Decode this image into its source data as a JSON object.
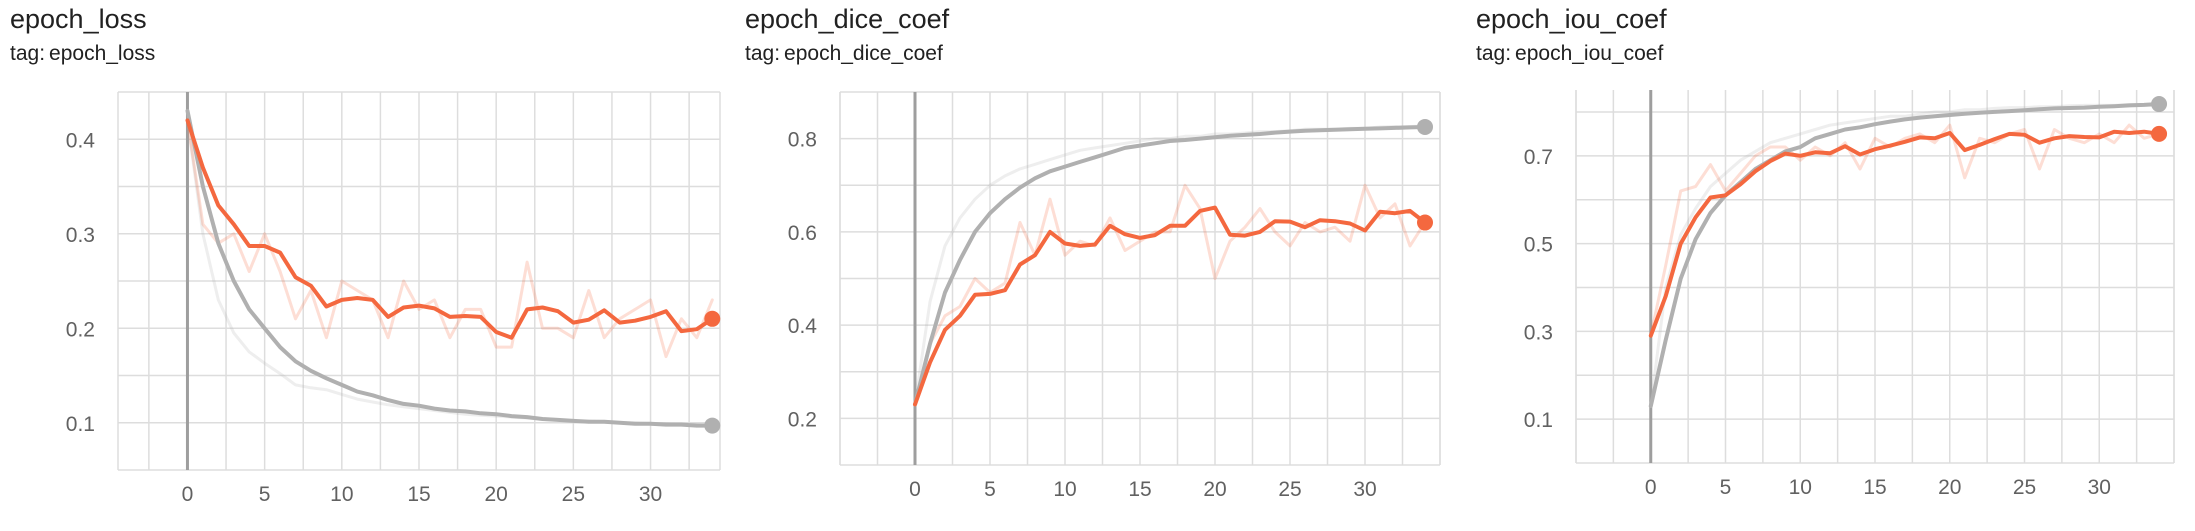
{
  "tag_label": "tag:",
  "colors": {
    "smoothed_train": "#f4683f",
    "raw_train": "#f4683f",
    "smoothed_val": "#b0b0b0",
    "raw_val": "#b0b0b0",
    "grid": "#dddddd",
    "zero_axis": "#9e9e9e"
  },
  "panels": [
    {
      "title": "epoch_loss",
      "tag": "epoch_loss"
    },
    {
      "title": "epoch_dice_coef",
      "tag": "epoch_dice_coef"
    },
    {
      "title": "epoch_iou_coef",
      "tag": "epoch_iou_coef"
    }
  ],
  "chart_data": [
    {
      "type": "line",
      "title": "epoch_loss",
      "xlabel": "",
      "ylabel": "",
      "xlim": [
        -4.5,
        34.5
      ],
      "ylim": [
        0.05,
        0.45
      ],
      "xticks": [
        0,
        5,
        10,
        15,
        20,
        25,
        30
      ],
      "yticks": [
        0.1,
        0.2,
        0.3,
        0.4
      ],
      "ytick_labels": [
        "0.1",
        "0.2",
        "0.3",
        "0.4"
      ],
      "grid": true,
      "series": [
        {
          "role": "raw_train",
          "x": [
            0,
            1,
            2,
            3,
            4,
            5,
            6,
            7,
            8,
            9,
            10,
            11,
            12,
            13,
            14,
            15,
            16,
            17,
            18,
            19,
            20,
            21,
            22,
            23,
            24,
            25,
            26,
            27,
            28,
            29,
            30,
            31,
            32,
            33,
            34
          ],
          "values": [
            0.42,
            0.31,
            0.29,
            0.3,
            0.26,
            0.3,
            0.26,
            0.21,
            0.24,
            0.19,
            0.25,
            0.24,
            0.23,
            0.19,
            0.25,
            0.22,
            0.23,
            0.19,
            0.22,
            0.22,
            0.18,
            0.18,
            0.27,
            0.2,
            0.2,
            0.19,
            0.24,
            0.19,
            0.21,
            0.22,
            0.23,
            0.17,
            0.21,
            0.19,
            0.23
          ]
        },
        {
          "role": "smoothed_train",
          "x": [
            0,
            1,
            2,
            3,
            4,
            5,
            6,
            7,
            8,
            9,
            10,
            11,
            12,
            13,
            14,
            15,
            16,
            17,
            18,
            19,
            20,
            21,
            22,
            23,
            24,
            25,
            26,
            27,
            28,
            29,
            30,
            31,
            32,
            33,
            34
          ],
          "values": [
            0.42,
            0.37,
            0.33,
            0.31,
            0.287,
            0.287,
            0.28,
            0.254,
            0.245,
            0.223,
            0.23,
            0.232,
            0.23,
            0.212,
            0.222,
            0.224,
            0.221,
            0.212,
            0.213,
            0.212,
            0.196,
            0.19,
            0.22,
            0.222,
            0.218,
            0.206,
            0.209,
            0.219,
            0.206,
            0.208,
            0.212,
            0.218,
            0.197,
            0.199,
            0.21
          ]
        },
        {
          "role": "raw_val",
          "x": [
            0,
            1,
            2,
            3,
            4,
            5,
            6,
            7,
            8,
            9,
            10,
            11,
            12,
            13,
            14,
            15,
            16,
            17,
            18,
            19,
            20,
            21,
            22,
            23,
            24,
            25,
            26,
            27,
            28,
            29,
            30,
            31,
            32,
            33,
            34
          ],
          "values": [
            0.42,
            0.3,
            0.23,
            0.195,
            0.175,
            0.163,
            0.152,
            0.14,
            0.137,
            0.135,
            0.13,
            0.125,
            0.122,
            0.119,
            0.117,
            0.115,
            0.113,
            0.111,
            0.109,
            0.108,
            0.107,
            0.106,
            0.105,
            0.104,
            0.103,
            0.102,
            0.102,
            0.101,
            0.1,
            0.1,
            0.099,
            0.099,
            0.098,
            0.098,
            0.097
          ]
        },
        {
          "role": "smoothed_val",
          "x": [
            0,
            1,
            2,
            3,
            4,
            5,
            6,
            7,
            8,
            9,
            10,
            11,
            12,
            13,
            14,
            15,
            16,
            17,
            18,
            19,
            20,
            21,
            22,
            23,
            24,
            25,
            26,
            27,
            28,
            29,
            30,
            31,
            32,
            33,
            34
          ],
          "values": [
            0.43,
            0.35,
            0.29,
            0.25,
            0.22,
            0.2,
            0.18,
            0.165,
            0.155,
            0.147,
            0.14,
            0.133,
            0.129,
            0.124,
            0.12,
            0.118,
            0.115,
            0.113,
            0.112,
            0.11,
            0.109,
            0.107,
            0.106,
            0.104,
            0.103,
            0.102,
            0.101,
            0.101,
            0.1,
            0.099,
            0.099,
            0.098,
            0.098,
            0.097,
            0.097
          ]
        }
      ],
      "end_markers": {
        "train": 0.21,
        "val": 0.097
      }
    },
    {
      "type": "line",
      "title": "epoch_dice_coef",
      "xlabel": "",
      "ylabel": "",
      "xlim": [
        -5,
        35
      ],
      "ylim": [
        0.1,
        0.9
      ],
      "xticks": [
        0,
        5,
        10,
        15,
        20,
        25,
        30
      ],
      "yticks": [
        0.2,
        0.4,
        0.6,
        0.8
      ],
      "ytick_labels": [
        "0.2",
        "0.4",
        "0.6",
        "0.8"
      ],
      "grid": true,
      "series": [
        {
          "role": "raw_train",
          "x": [
            0,
            1,
            2,
            3,
            4,
            5,
            6,
            7,
            8,
            9,
            10,
            11,
            12,
            13,
            14,
            15,
            16,
            17,
            18,
            19,
            20,
            21,
            22,
            23,
            24,
            25,
            26,
            27,
            28,
            29,
            30,
            31,
            32,
            33,
            34
          ],
          "values": [
            0.23,
            0.36,
            0.42,
            0.44,
            0.5,
            0.47,
            0.49,
            0.62,
            0.55,
            0.67,
            0.55,
            0.58,
            0.57,
            0.63,
            0.56,
            0.58,
            0.6,
            0.6,
            0.7,
            0.65,
            0.5,
            0.58,
            0.61,
            0.65,
            0.6,
            0.57,
            0.62,
            0.6,
            0.61,
            0.58,
            0.7,
            0.63,
            0.66,
            0.57,
            0.62
          ]
        },
        {
          "role": "smoothed_train",
          "x": [
            0,
            1,
            2,
            3,
            4,
            5,
            6,
            7,
            8,
            9,
            10,
            11,
            12,
            13,
            14,
            15,
            16,
            17,
            18,
            19,
            20,
            21,
            22,
            23,
            24,
            25,
            26,
            27,
            28,
            29,
            30,
            31,
            32,
            33,
            34
          ],
          "values": [
            0.23,
            0.32,
            0.39,
            0.42,
            0.465,
            0.467,
            0.475,
            0.53,
            0.55,
            0.6,
            0.575,
            0.57,
            0.573,
            0.613,
            0.595,
            0.587,
            0.593,
            0.613,
            0.613,
            0.645,
            0.652,
            0.594,
            0.592,
            0.6,
            0.623,
            0.622,
            0.61,
            0.625,
            0.623,
            0.618,
            0.603,
            0.643,
            0.64,
            0.645,
            0.62
          ]
        },
        {
          "role": "raw_val",
          "x": [
            0,
            1,
            2,
            3,
            4,
            5,
            6,
            7,
            8,
            9,
            10,
            11,
            12,
            13,
            14,
            15,
            16,
            17,
            18,
            19,
            20,
            21,
            22,
            23,
            24,
            25,
            26,
            27,
            28,
            29,
            30,
            31,
            32,
            33,
            34
          ],
          "values": [
            0.23,
            0.45,
            0.57,
            0.63,
            0.67,
            0.7,
            0.72,
            0.735,
            0.745,
            0.755,
            0.765,
            0.775,
            0.78,
            0.785,
            0.79,
            0.795,
            0.8,
            0.8,
            0.805,
            0.805,
            0.81,
            0.81,
            0.812,
            0.815,
            0.815,
            0.817,
            0.82,
            0.82,
            0.82,
            0.822,
            0.822,
            0.825,
            0.826,
            0.826,
            0.827
          ]
        },
        {
          "role": "smoothed_val",
          "x": [
            0,
            1,
            2,
            3,
            4,
            5,
            6,
            7,
            8,
            9,
            10,
            11,
            12,
            13,
            14,
            15,
            16,
            17,
            18,
            19,
            20,
            21,
            22,
            23,
            24,
            25,
            26,
            27,
            28,
            29,
            30,
            31,
            32,
            33,
            34
          ],
          "values": [
            0.23,
            0.36,
            0.47,
            0.54,
            0.6,
            0.64,
            0.67,
            0.695,
            0.715,
            0.73,
            0.74,
            0.75,
            0.76,
            0.77,
            0.78,
            0.785,
            0.79,
            0.795,
            0.797,
            0.8,
            0.803,
            0.806,
            0.808,
            0.81,
            0.813,
            0.815,
            0.817,
            0.818,
            0.819,
            0.82,
            0.821,
            0.822,
            0.823,
            0.824,
            0.825
          ]
        }
      ],
      "end_markers": {
        "train": 0.62,
        "val": 0.825
      }
    },
    {
      "type": "line",
      "title": "epoch_iou_coef",
      "xlabel": "",
      "ylabel": "",
      "xlim": [
        -5,
        35
      ],
      "ylim": [
        0.0,
        0.85
      ],
      "xticks": [
        0,
        5,
        10,
        15,
        20,
        25,
        30
      ],
      "yticks": [
        0.1,
        0.3,
        0.5,
        0.7
      ],
      "ytick_labels": [
        "0.1",
        "0.3",
        "0.5",
        "0.7"
      ],
      "grid": true,
      "series": [
        {
          "role": "raw_train",
          "x": [
            0,
            1,
            2,
            3,
            4,
            5,
            6,
            7,
            8,
            9,
            10,
            11,
            12,
            13,
            14,
            15,
            16,
            17,
            18,
            19,
            20,
            21,
            22,
            23,
            24,
            25,
            26,
            27,
            28,
            29,
            30,
            31,
            32,
            33,
            34
          ],
          "values": [
            0.29,
            0.45,
            0.62,
            0.63,
            0.68,
            0.62,
            0.66,
            0.7,
            0.72,
            0.72,
            0.69,
            0.72,
            0.7,
            0.73,
            0.67,
            0.74,
            0.72,
            0.74,
            0.75,
            0.73,
            0.77,
            0.65,
            0.74,
            0.73,
            0.75,
            0.76,
            0.67,
            0.76,
            0.74,
            0.73,
            0.75,
            0.73,
            0.77,
            0.74,
            0.75
          ]
        },
        {
          "role": "smoothed_train",
          "x": [
            0,
            1,
            2,
            3,
            4,
            5,
            6,
            7,
            8,
            9,
            10,
            11,
            12,
            13,
            14,
            15,
            16,
            17,
            18,
            19,
            20,
            21,
            22,
            23,
            24,
            25,
            26,
            27,
            28,
            29,
            30,
            31,
            32,
            33,
            34
          ],
          "values": [
            0.29,
            0.38,
            0.5,
            0.56,
            0.605,
            0.61,
            0.635,
            0.665,
            0.688,
            0.705,
            0.7,
            0.708,
            0.706,
            0.722,
            0.703,
            0.715,
            0.723,
            0.732,
            0.742,
            0.74,
            0.752,
            0.713,
            0.725,
            0.738,
            0.75,
            0.748,
            0.73,
            0.74,
            0.745,
            0.743,
            0.742,
            0.755,
            0.752,
            0.755,
            0.75
          ]
        },
        {
          "role": "raw_val",
          "x": [
            0,
            1,
            2,
            3,
            4,
            5,
            6,
            7,
            8,
            9,
            10,
            11,
            12,
            13,
            14,
            15,
            16,
            17,
            18,
            19,
            20,
            21,
            22,
            23,
            24,
            25,
            26,
            27,
            28,
            29,
            30,
            31,
            32,
            33,
            34
          ],
          "values": [
            0.13,
            0.4,
            0.52,
            0.58,
            0.63,
            0.66,
            0.69,
            0.71,
            0.73,
            0.74,
            0.75,
            0.76,
            0.77,
            0.775,
            0.78,
            0.785,
            0.79,
            0.79,
            0.795,
            0.8,
            0.8,
            0.805,
            0.805,
            0.808,
            0.81,
            0.81,
            0.812,
            0.812,
            0.814,
            0.815,
            0.815,
            0.815,
            0.817,
            0.817,
            0.818
          ]
        },
        {
          "role": "smoothed_val",
          "x": [
            0,
            1,
            2,
            3,
            4,
            5,
            6,
            7,
            8,
            9,
            10,
            11,
            12,
            13,
            14,
            15,
            16,
            17,
            18,
            19,
            20,
            21,
            22,
            23,
            24,
            25,
            26,
            27,
            28,
            29,
            30,
            31,
            32,
            33,
            34
          ],
          "values": [
            0.13,
            0.28,
            0.42,
            0.51,
            0.57,
            0.61,
            0.64,
            0.67,
            0.69,
            0.71,
            0.72,
            0.74,
            0.75,
            0.76,
            0.765,
            0.772,
            0.778,
            0.783,
            0.787,
            0.79,
            0.793,
            0.796,
            0.798,
            0.8,
            0.802,
            0.804,
            0.806,
            0.808,
            0.809,
            0.81,
            0.812,
            0.813,
            0.815,
            0.816,
            0.818
          ]
        }
      ],
      "end_markers": {
        "train": 0.75,
        "val": 0.818
      }
    }
  ]
}
